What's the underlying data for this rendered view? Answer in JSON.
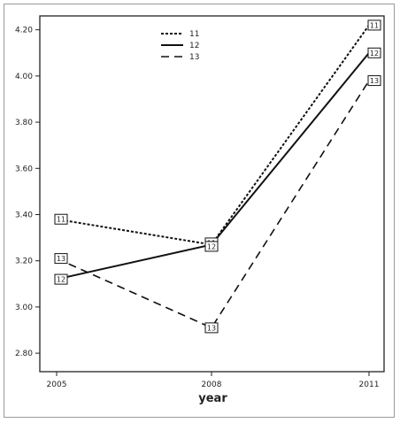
{
  "chart_data": {
    "type": "line",
    "x": [
      "2005",
      "2008",
      "2011"
    ],
    "xlabel": "year",
    "ylabel": "",
    "ylim": [
      2.72,
      4.26
    ],
    "yticks": [
      "2.80",
      "3.00",
      "3.20",
      "3.40",
      "3.60",
      "3.80",
      "4.00",
      "4.20"
    ],
    "ytick_values": [
      2.8,
      3.0,
      3.2,
      3.4,
      3.6,
      3.8,
      4.0,
      4.2
    ],
    "grid": false,
    "legend_position": "top-center",
    "series": [
      {
        "name": "11",
        "values": [
          3.38,
          3.27,
          4.22
        ],
        "dash": "3,2",
        "width": 2,
        "point_label": "11"
      },
      {
        "name": "12",
        "values": [
          3.12,
          3.27,
          4.1
        ],
        "dash": "",
        "width": 2,
        "point_label": "12"
      },
      {
        "name": "13",
        "values": [
          3.21,
          2.91,
          3.98
        ],
        "dash": "9,6",
        "width": 1.6,
        "point_label": "13"
      }
    ]
  }
}
